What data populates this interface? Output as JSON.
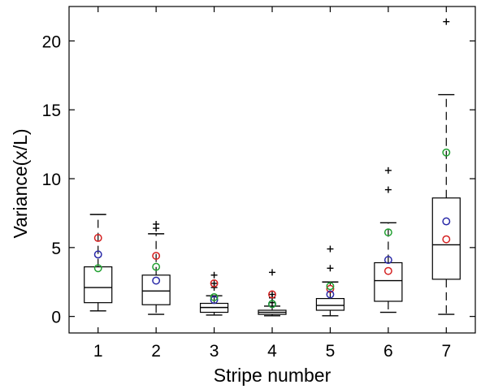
{
  "chart_data": {
    "type": "boxplot",
    "title": "",
    "xlabel": "Stripe number",
    "ylabel": "Variance(x/L)",
    "categories": [
      "1",
      "2",
      "3",
      "4",
      "5",
      "6",
      "7"
    ],
    "yticks": [
      "0",
      "5",
      "10",
      "15",
      "20"
    ],
    "xlim": [
      0.5,
      7.5
    ],
    "ylim": [
      -1.2,
      22.5
    ],
    "boxes": [
      {
        "category": "1",
        "whisker_low": 0.4,
        "q1": 1.0,
        "median": 2.1,
        "q3": 3.6,
        "whisker_high": 7.4,
        "outliers": []
      },
      {
        "category": "2",
        "whisker_low": 0.15,
        "q1": 0.85,
        "median": 1.85,
        "q3": 3.0,
        "whisker_high": 6.0,
        "outliers": [
          6.4,
          6.7
        ]
      },
      {
        "category": "3",
        "whisker_low": 0.1,
        "q1": 0.3,
        "median": 0.65,
        "q3": 0.95,
        "whisker_high": 1.5,
        "outliers": [
          2.1,
          2.4,
          3.0
        ]
      },
      {
        "category": "4",
        "whisker_low": 0.05,
        "q1": 0.15,
        "median": 0.3,
        "q3": 0.45,
        "whisker_high": 0.75,
        "outliers": [
          1.0,
          1.35,
          1.6,
          3.2
        ]
      },
      {
        "category": "5",
        "whisker_low": 0.05,
        "q1": 0.45,
        "median": 0.8,
        "q3": 1.3,
        "whisker_high": 2.5,
        "outliers": [
          3.5,
          4.9
        ]
      },
      {
        "category": "6",
        "whisker_low": 0.3,
        "q1": 1.1,
        "median": 2.6,
        "q3": 3.9,
        "whisker_high": 6.8,
        "outliers": [
          9.2,
          10.6
        ]
      },
      {
        "category": "7",
        "whisker_low": 0.15,
        "q1": 2.7,
        "median": 5.2,
        "q3": 8.6,
        "whisker_high": 16.1,
        "outliers": [
          21.4
        ]
      }
    ],
    "markers": [
      {
        "color": "#d42020",
        "values": [
          5.7,
          4.4,
          2.4,
          1.6,
          2.0,
          3.3,
          5.6
        ]
      },
      {
        "color": "#2a2aa8",
        "values": [
          4.5,
          2.6,
          1.2,
          0.9,
          1.6,
          4.1,
          6.9
        ]
      },
      {
        "color": "#20a030",
        "values": [
          3.5,
          3.6,
          1.4,
          0.9,
          2.2,
          6.1,
          11.9
        ]
      }
    ],
    "grid": false,
    "legend": "none"
  }
}
